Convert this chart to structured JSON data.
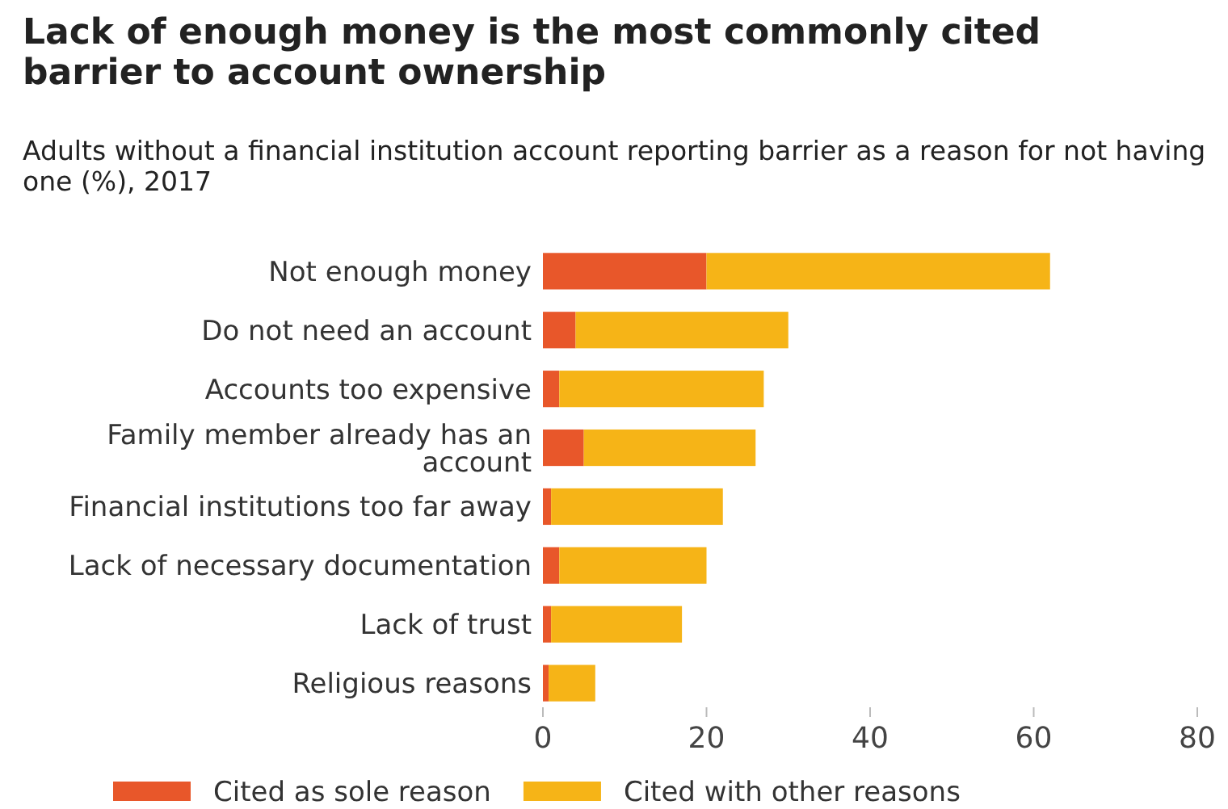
{
  "chart_data": {
    "type": "bar",
    "orientation": "horizontal",
    "stacked": true,
    "title": "Lack of enough money is the most commonly cited barrier to account ownership",
    "subtitle": "Adults without a financial institution account reporting barrier as a reason for not having one (%), 2017",
    "categories": [
      "Not enough money",
      "Do not need an account",
      "Accounts too expensive",
      "Family member already has an account",
      "Financial institutions too far away",
      "Lack of necessary documentation",
      "Lack of trust",
      "Religious reasons"
    ],
    "series": [
      {
        "name": "Cited as sole reason",
        "color": "#e8572a",
        "values": [
          20,
          4,
          2,
          5,
          1,
          2,
          1,
          0.7
        ]
      },
      {
        "name": "Cited with other reasons",
        "color": "#f6b417",
        "values": [
          42,
          26,
          25,
          21,
          21,
          18,
          16,
          5.7
        ]
      }
    ],
    "xlim": [
      0,
      80
    ],
    "xticks": [
      0,
      20,
      40,
      60,
      80
    ],
    "grid": false,
    "legend": "bottom"
  }
}
